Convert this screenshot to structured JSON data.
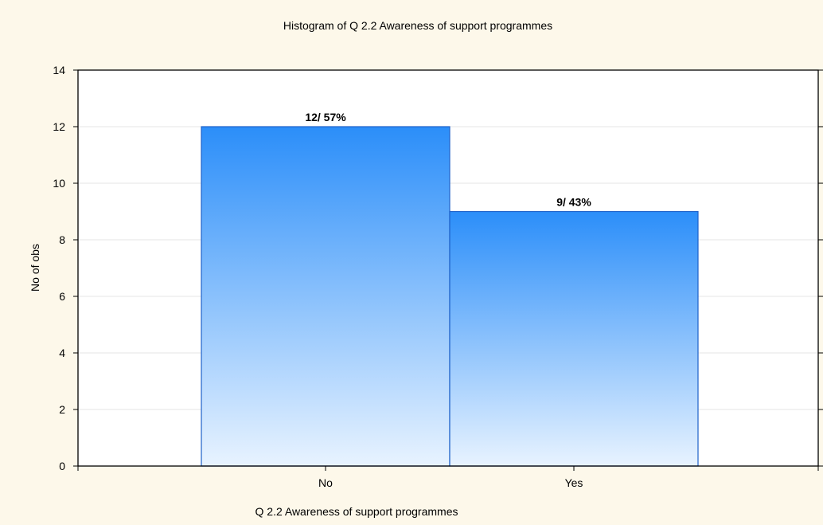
{
  "chart_data": {
    "type": "bar",
    "title": "Histogram of Q 2.2 Awareness of support programmes",
    "xlabel": "Q 2.2 Awareness of support programmes",
    "ylabel": "No of obs",
    "categories": [
      "No",
      "Yes"
    ],
    "values": [
      12,
      9
    ],
    "bar_labels": [
      "12/ 57%",
      "9/ 43%"
    ],
    "ylim": [
      0,
      14
    ],
    "yticks": [
      0,
      2,
      4,
      6,
      8,
      10,
      12,
      14
    ],
    "grid": true,
    "legend": "none",
    "colors": {
      "background": "#fdf8ea",
      "plot_background": "#ffffff",
      "bar_top": "#2b8ef9",
      "bar_bottom": "#e8f3ff",
      "bar_stroke": "#1e62c9",
      "grid": "#e6e6e6",
      "axis": "#000000"
    }
  }
}
